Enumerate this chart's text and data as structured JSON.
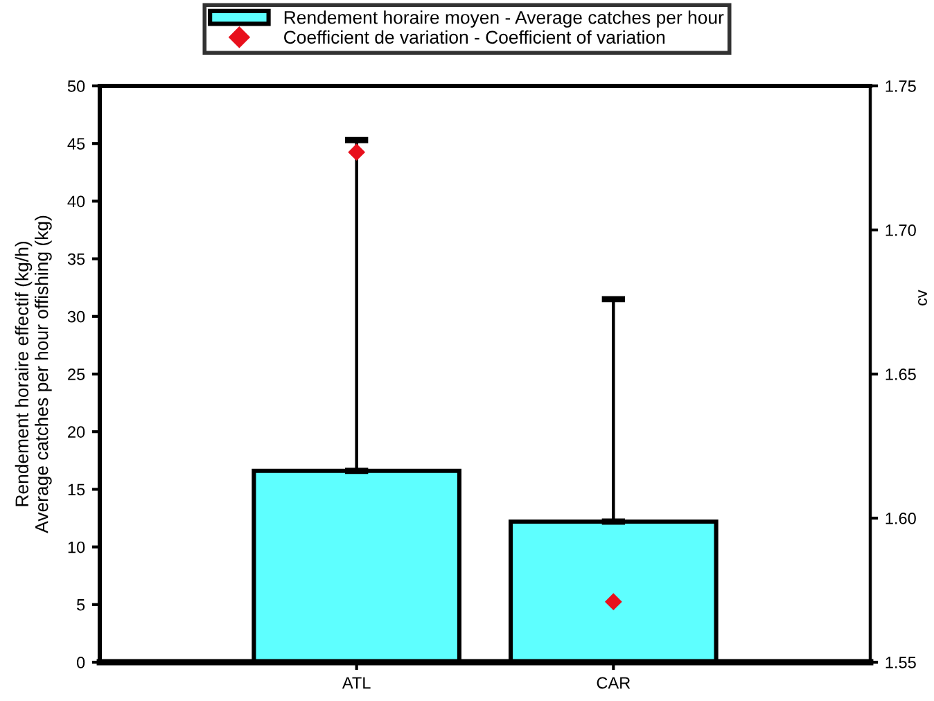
{
  "chart_data": {
    "type": "bar",
    "categories": [
      "ATL",
      "CAR"
    ],
    "ylabel": "Rendement horaire effectif (kg/h)\nAverage catches per hour offishing (kg)",
    "y2label": "cv",
    "series": [
      {
        "name": "Rendement horaire moyen - Average catches per hour",
        "color": "#5effff",
        "values": [
          16.6,
          12.2
        ],
        "errors": [
          [
            16.6,
            45.3
          ],
          [
            12.2,
            31.5
          ]
        ]
      },
      {
        "name": "Coefficient de variation - Coefficient of variation",
        "type": "scatter",
        "axis": "y2",
        "marker": "diamond",
        "color": "#e8101c",
        "values": [
          1.727,
          1.571
        ]
      }
    ],
    "ylim": [
      0,
      50
    ],
    "yticks": [
      0,
      5,
      10,
      15,
      20,
      25,
      30,
      35,
      40,
      45,
      50
    ],
    "y2lim": [
      1.55,
      1.75
    ],
    "y2ticks": [
      1.55,
      {
        "value": 1.6,
        "label": "1.60"
      },
      1.65,
      {
        "value": 1.7,
        "label": "1.70"
      },
      1.75
    ],
    "legend": "top"
  }
}
